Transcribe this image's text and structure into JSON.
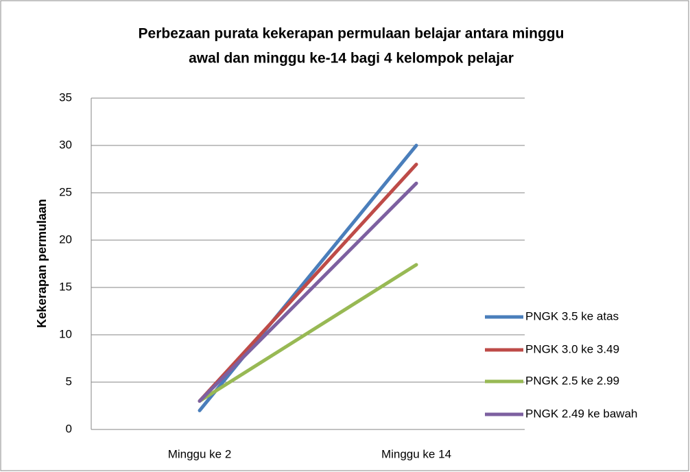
{
  "chart_data": {
    "type": "line",
    "title": [
      "Perbezaan purata kekerapan permulaan belajar antara minggu",
      "awal dan minggu ke-14 bagi 4 kelompok pelajar"
    ],
    "y_label": "Kekerapan permulaan",
    "categories": [
      "Minggu ke 2",
      "Minggu ke 14"
    ],
    "series": [
      {
        "name": "PNGK 3.5 ke atas",
        "color": "#4a7ebb",
        "values": [
          2,
          30
        ]
      },
      {
        "name": "PNGK 3.0 ke 3.49",
        "color": "#be4b48",
        "values": [
          3,
          28
        ]
      },
      {
        "name": "PNGK 2.5 ke 2.99",
        "color": "#98b954",
        "values": [
          3,
          17.4
        ]
      },
      {
        "name": "PNGK 2.49 ke bawah",
        "color": "#7d60a0",
        "values": [
          3,
          26
        ]
      }
    ],
    "ylim": [
      0,
      35
    ],
    "yticks": [
      0,
      5,
      10,
      15,
      20,
      25,
      30,
      35
    ],
    "grid": true,
    "legend": "right"
  }
}
